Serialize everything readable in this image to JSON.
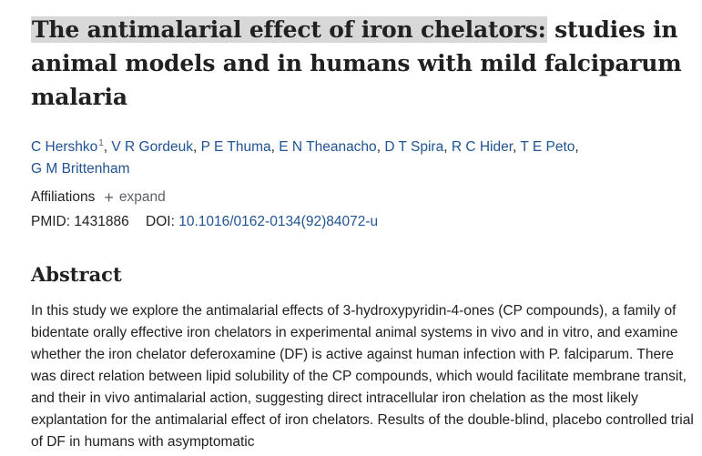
{
  "article": {
    "title_highlighted": "The antimalarial effect of iron chelators:",
    "title_rest": " studies in animal models and in humans with mild falciparum malaria",
    "authors": [
      {
        "name": "C Hershko",
        "affiliation_ref": "1"
      },
      {
        "name": "V R Gordeuk"
      },
      {
        "name": "P E Thuma"
      },
      {
        "name": "E N Theanacho"
      },
      {
        "name": "D T Spira"
      },
      {
        "name": "R C Hider"
      },
      {
        "name": "T E Peto"
      },
      {
        "name": "G M Brittenham"
      }
    ],
    "affiliations_label": "Affiliations",
    "expand_label": "expand",
    "pmid_label": "PMID:",
    "pmid": "1431886",
    "doi_label": "DOI:",
    "doi": "10.1016/0162-0134(92)84072-u"
  },
  "abstract": {
    "heading": "Abstract",
    "text": "In this study we explore the antimalarial effects of 3-hydroxypyridin-4-ones (CP compounds), a family of bidentate orally effective iron chelators in experimental animal systems in vivo and in vitro, and examine whether the iron chelator deferoxamine (DF) is active against human infection with P. falciparum. There was direct relation between lipid solubility of the CP compounds, which would facilitate membrane transit, and their in vivo antimalarial action, suggesting direct intracellular iron chelation as the most likely explantation for the antimalarial effect of iron chelators. Results of the double-blind, placebo controlled trial of DF in humans with asymptomatic"
  }
}
